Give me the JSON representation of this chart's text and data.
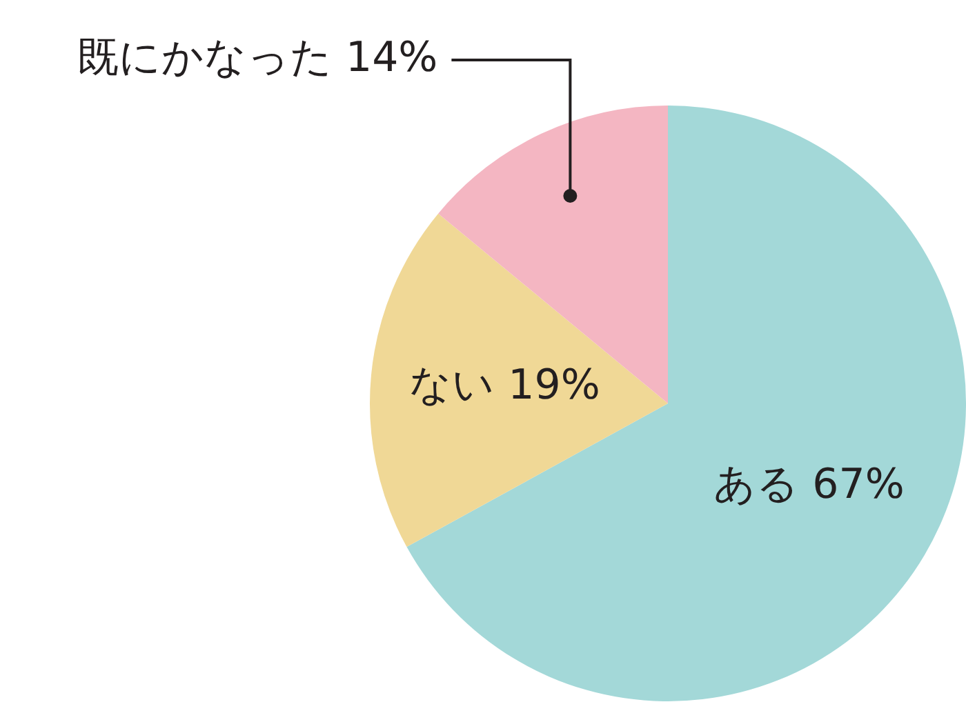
{
  "chart_data": {
    "type": "pie",
    "categories": [
      "ある",
      "ない",
      "既にかなった"
    ],
    "values": [
      67,
      19,
      14
    ],
    "colors": [
      "#a3d8d8",
      "#f0d896",
      "#f4b6c2"
    ],
    "value_labels": [
      "67%",
      "19%",
      "14%"
    ],
    "data_labels": true,
    "legend": false
  }
}
